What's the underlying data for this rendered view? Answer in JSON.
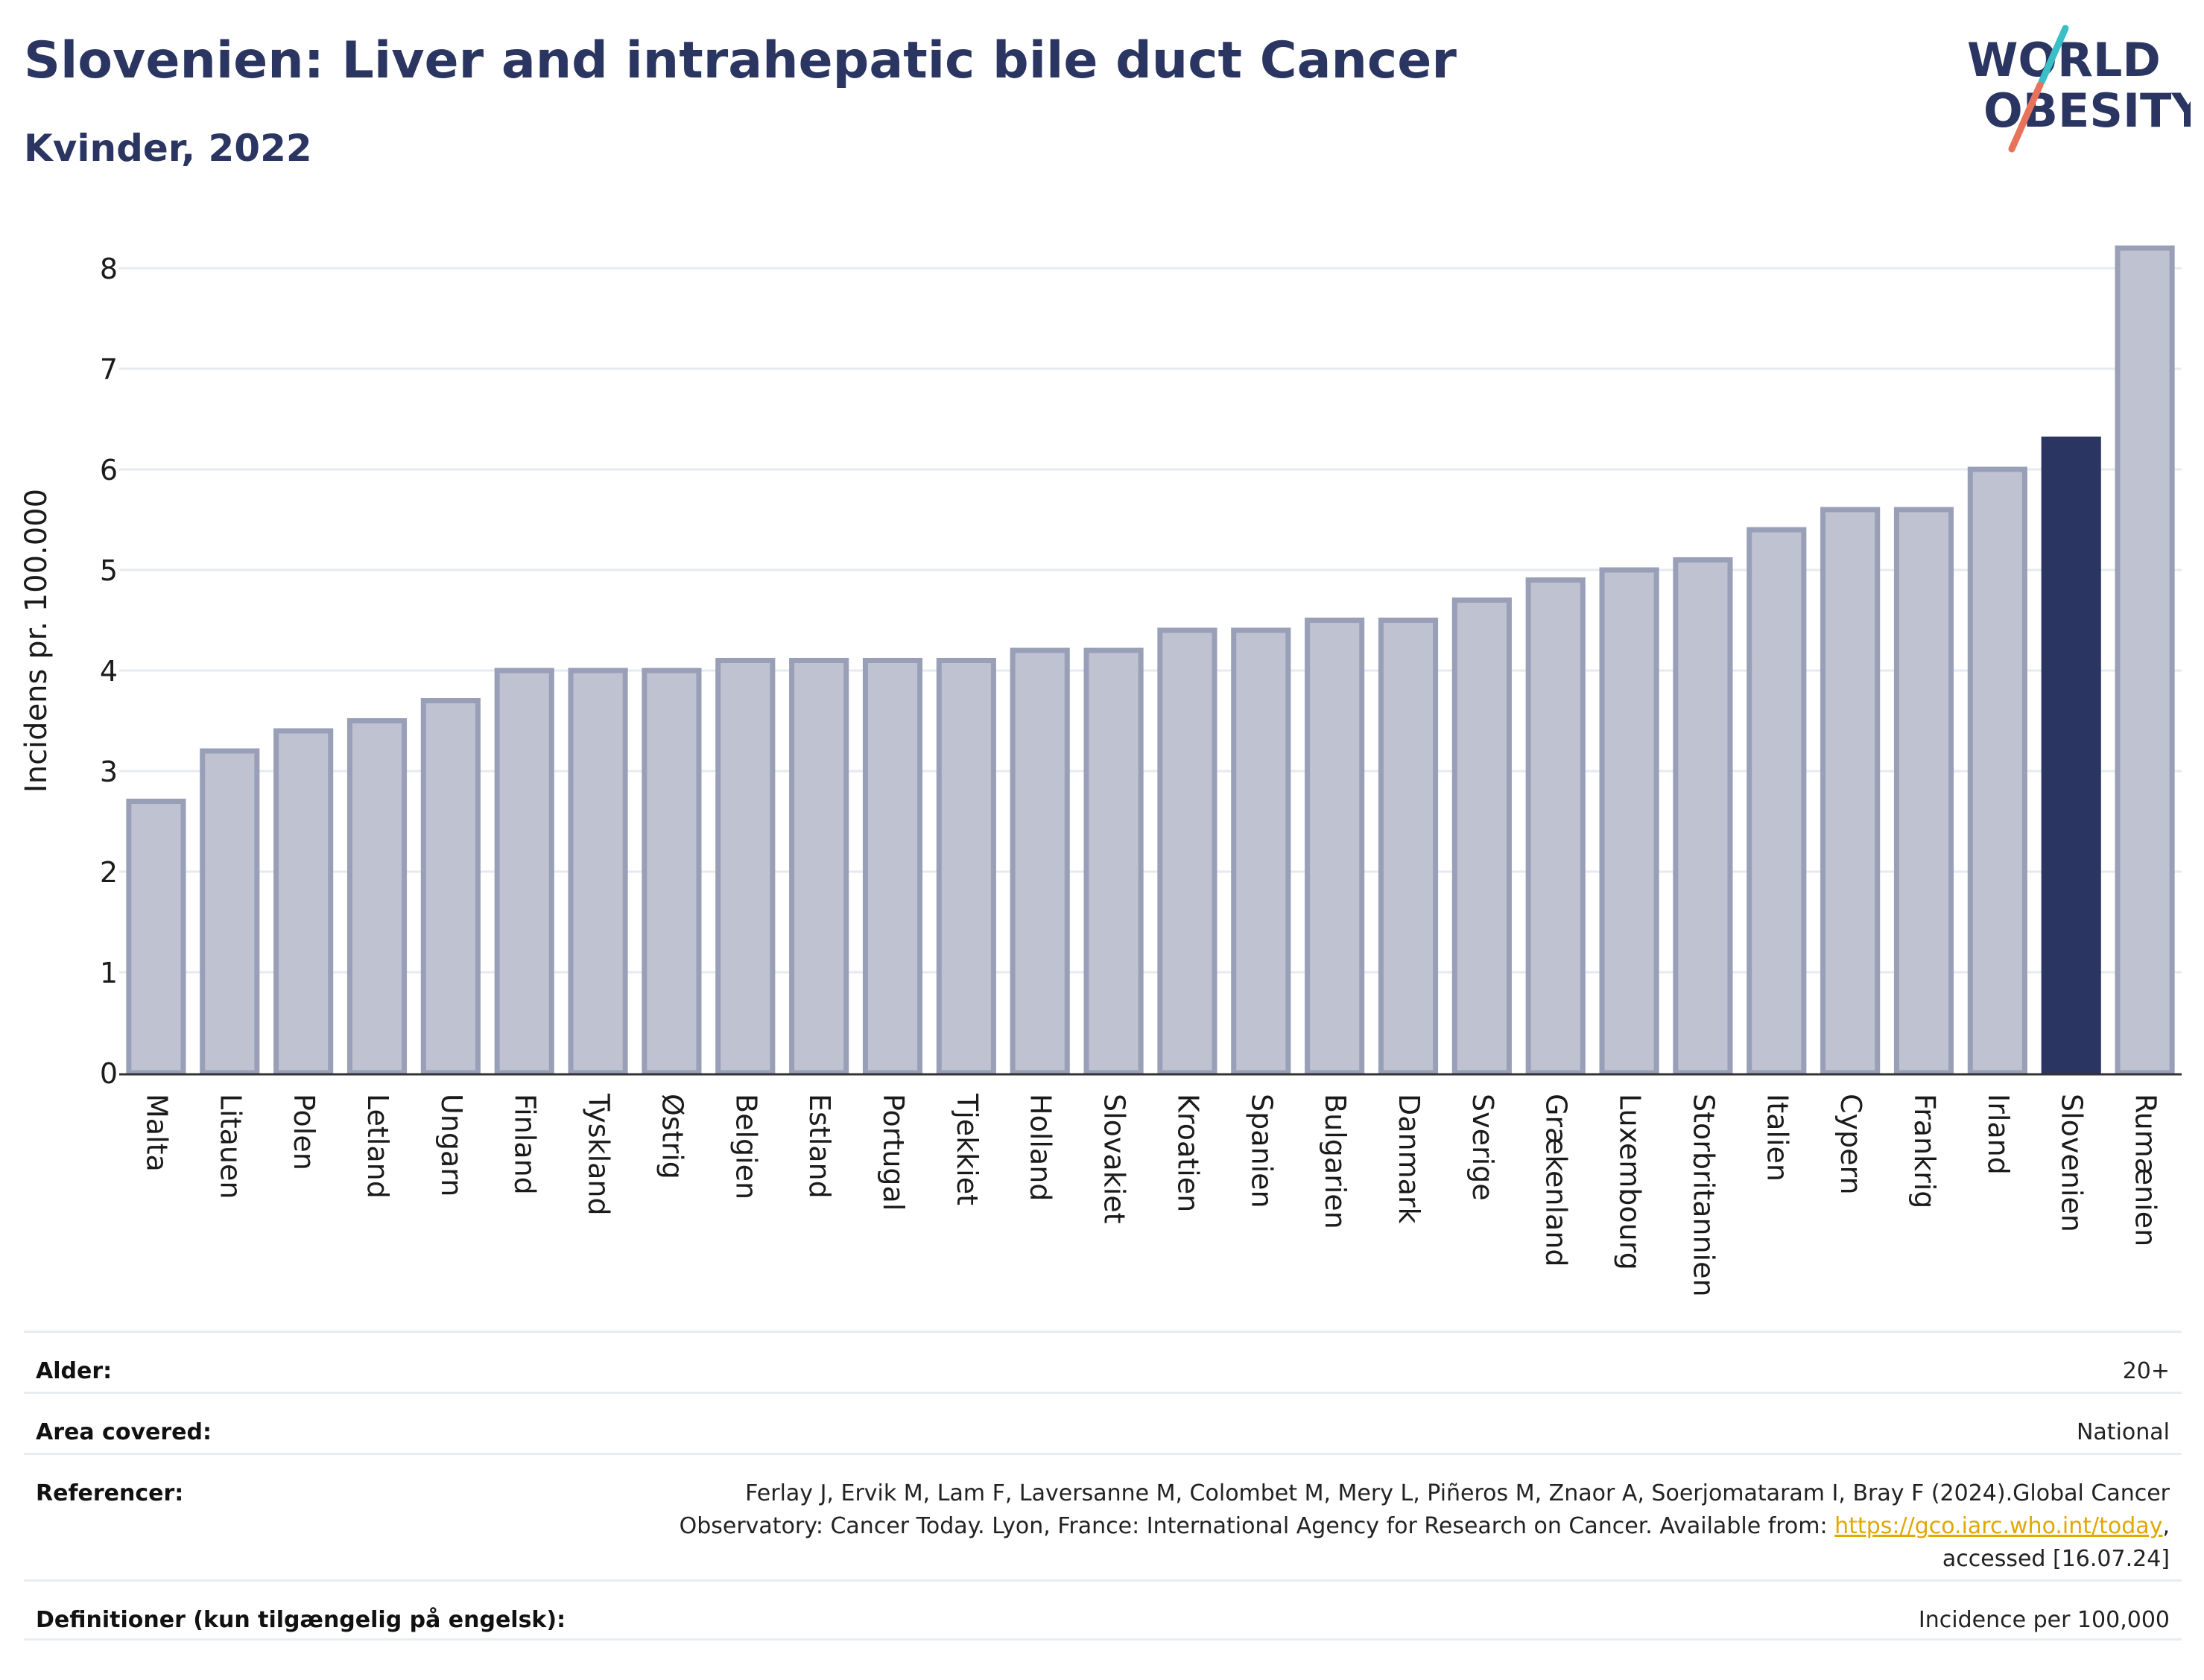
{
  "header": {
    "title": "Slovenien: Liver and intrahepatic bile duct Cancer",
    "subtitle": "Kvinder, 2022"
  },
  "logo": {
    "line1": "WORLD",
    "line2": "OBESITY",
    "text_color": "#2b3561",
    "slash_top_color": "#3bbfc6",
    "slash_bottom_color": "#e8735a"
  },
  "chart_data": {
    "type": "bar",
    "ylabel": "Incidens pr. 100.000",
    "xlabel": "",
    "ylim": [
      0,
      8.3
    ],
    "yticks": [
      0,
      1,
      2,
      3,
      4,
      5,
      6,
      7,
      8
    ],
    "grid": true,
    "categories": [
      "Malta",
      "Litauen",
      "Polen",
      "Letland",
      "Ungarn",
      "Finland",
      "Tyskland",
      "Østrig",
      "Belgien",
      "Estland",
      "Portugal",
      "Tjekkiet",
      "Holland",
      "Slovakiet",
      "Kroatien",
      "Spanien",
      "Bulgarien",
      "Danmark",
      "Sverige",
      "Grækenland",
      "Luxembourg",
      "Storbritannien",
      "Italien",
      "Cypern",
      "Frankrig",
      "Irland",
      "Slovenien",
      "Rumænien"
    ],
    "values": [
      2.7,
      3.2,
      3.4,
      3.5,
      3.7,
      4.0,
      4.0,
      4.0,
      4.1,
      4.1,
      4.1,
      4.1,
      4.2,
      4.2,
      4.4,
      4.4,
      4.5,
      4.5,
      4.7,
      4.9,
      5.0,
      5.1,
      5.4,
      5.6,
      5.6,
      6.0,
      6.3,
      8.2
    ],
    "highlight": "Slovenien",
    "colors": {
      "bar_fill": "#bfc2d0",
      "bar_stroke": "#9a9fb8",
      "highlight_fill": "#2b3561",
      "grid": "#e6eaf0",
      "axis": "#333333"
    }
  },
  "meta": {
    "age_label": "Alder:",
    "age_value": "20+",
    "area_label": "Area covered:",
    "area_value": "National",
    "ref_label": "Referencer:",
    "ref_text_1": "Ferlay J, Ervik M, Lam F, Laversanne M, Colombet M, Mery L, Piñeros M, Znaor A, Soerjomataram I, Bray F (2024).Global Cancer Observatory: Cancer Today. Lyon, France: International Agency for Research on Cancer. Available from: ",
    "ref_link": "https://gco.iarc.who.int/today",
    "ref_text_2": ", accessed [16.07.24]",
    "def_label": "Definitioner (kun tilgængelig på engelsk):",
    "def_value": "Incidence per 100,000"
  }
}
